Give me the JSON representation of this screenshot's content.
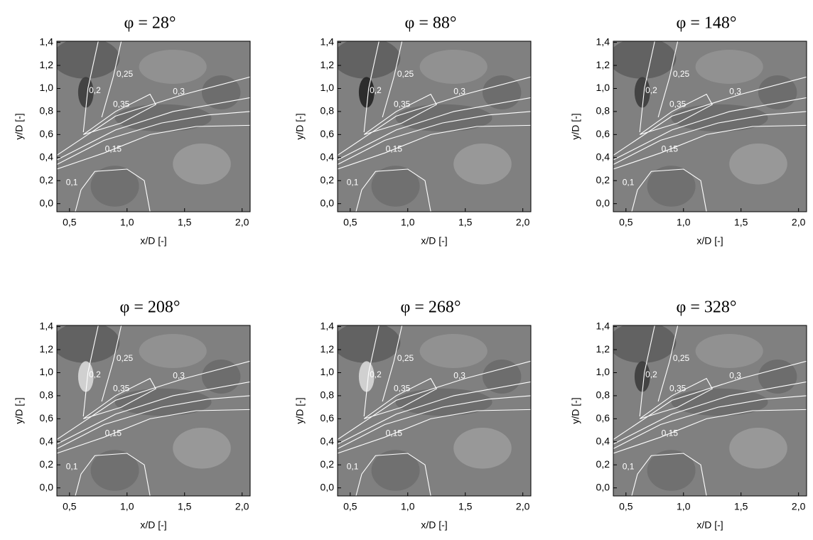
{
  "chart_data": [
    {
      "type": "contour",
      "title": "φ = 28°",
      "xlabel": "x/D [-]",
      "ylabel": "y/D [-]",
      "xlim": [
        0.39,
        2.07
      ],
      "ylim": [
        -0.07,
        1.41
      ],
      "xticks": [
        {
          "value": 0.5,
          "label": "0,5"
        },
        {
          "value": 1.0,
          "label": "1,0"
        },
        {
          "value": 1.5,
          "label": "1,5"
        },
        {
          "value": 2.0,
          "label": "2,0"
        }
      ],
      "yticks": [
        {
          "value": 0.0,
          "label": "0,0"
        },
        {
          "value": 0.2,
          "label": "0,2"
        },
        {
          "value": 0.4,
          "label": "0,4"
        },
        {
          "value": 0.6,
          "label": "0,6"
        },
        {
          "value": 0.8,
          "label": "0,8"
        },
        {
          "value": 1.0,
          "label": "1,0"
        },
        {
          "value": 1.2,
          "label": "1,2"
        },
        {
          "value": 1.4,
          "label": "1,4"
        }
      ],
      "contour_levels": [
        {
          "value": 0.1,
          "label": "0,1"
        },
        {
          "value": 0.15,
          "label": "0,15"
        },
        {
          "value": 0.2,
          "label": "0,2"
        },
        {
          "value": 0.25,
          "label": "0,25"
        },
        {
          "value": 0.3,
          "label": "0,3"
        },
        {
          "value": 0.35,
          "label": "0,35"
        }
      ]
    },
    {
      "type": "contour",
      "title": "φ = 88°",
      "xlabel": "x/D [-]",
      "ylabel": "y/D [-]",
      "xlim": [
        0.39,
        2.07
      ],
      "ylim": [
        -0.07,
        1.41
      ],
      "xticks": [
        {
          "value": 0.5,
          "label": "0,5"
        },
        {
          "value": 1.0,
          "label": "1,0"
        },
        {
          "value": 1.5,
          "label": "1,5"
        },
        {
          "value": 2.0,
          "label": "2,0"
        }
      ],
      "yticks": [
        {
          "value": 0.0,
          "label": "0,0"
        },
        {
          "value": 0.2,
          "label": "0,2"
        },
        {
          "value": 0.4,
          "label": "0,4"
        },
        {
          "value": 0.6,
          "label": "0,6"
        },
        {
          "value": 0.8,
          "label": "0,8"
        },
        {
          "value": 1.0,
          "label": "1,0"
        },
        {
          "value": 1.2,
          "label": "1,2"
        },
        {
          "value": 1.4,
          "label": "1,4"
        }
      ],
      "contour_levels": [
        {
          "value": 0.1,
          "label": "0,1"
        },
        {
          "value": 0.15,
          "label": "0,15"
        },
        {
          "value": 0.2,
          "label": "0,2"
        },
        {
          "value": 0.25,
          "label": "0,25"
        },
        {
          "value": 0.3,
          "label": "0,3"
        },
        {
          "value": 0.35,
          "label": "0,35"
        }
      ]
    },
    {
      "type": "contour",
      "title": "φ = 148°",
      "xlabel": "x/D [-]",
      "ylabel": "y/D [-]",
      "xlim": [
        0.39,
        2.07
      ],
      "ylim": [
        -0.07,
        1.41
      ],
      "xticks": [
        {
          "value": 0.5,
          "label": "0,5"
        },
        {
          "value": 1.0,
          "label": "1,0"
        },
        {
          "value": 1.5,
          "label": "1,5"
        },
        {
          "value": 2.0,
          "label": "2,0"
        }
      ],
      "yticks": [
        {
          "value": 0.0,
          "label": "0,0"
        },
        {
          "value": 0.2,
          "label": "0,2"
        },
        {
          "value": 0.4,
          "label": "0,4"
        },
        {
          "value": 0.6,
          "label": "0,6"
        },
        {
          "value": 0.8,
          "label": "0,8"
        },
        {
          "value": 1.0,
          "label": "1,0"
        },
        {
          "value": 1.2,
          "label": "1,2"
        },
        {
          "value": 1.4,
          "label": "1,4"
        }
      ],
      "contour_levels": [
        {
          "value": 0.1,
          "label": "0,1"
        },
        {
          "value": 0.15,
          "label": "0,15"
        },
        {
          "value": 0.2,
          "label": "0,2"
        },
        {
          "value": 0.25,
          "label": "0,25"
        },
        {
          "value": 0.3,
          "label": "0,3"
        },
        {
          "value": 0.35,
          "label": "0,35"
        }
      ]
    },
    {
      "type": "contour",
      "title": "φ = 208°",
      "xlabel": "x/D [-]",
      "ylabel": "y/D [-]",
      "xlim": [
        0.39,
        2.07
      ],
      "ylim": [
        -0.07,
        1.41
      ],
      "xticks": [
        {
          "value": 0.5,
          "label": "0,5"
        },
        {
          "value": 1.0,
          "label": "1,0"
        },
        {
          "value": 1.5,
          "label": "1,5"
        },
        {
          "value": 2.0,
          "label": "2,0"
        }
      ],
      "yticks": [
        {
          "value": 0.0,
          "label": "0,0"
        },
        {
          "value": 0.2,
          "label": "0,2"
        },
        {
          "value": 0.4,
          "label": "0,4"
        },
        {
          "value": 0.6,
          "label": "0,6"
        },
        {
          "value": 0.8,
          "label": "0,8"
        },
        {
          "value": 1.0,
          "label": "1,0"
        },
        {
          "value": 1.2,
          "label": "1,2"
        },
        {
          "value": 1.4,
          "label": "1,4"
        }
      ],
      "contour_levels": [
        {
          "value": 0.1,
          "label": "0,1"
        },
        {
          "value": 0.15,
          "label": "0,15"
        },
        {
          "value": 0.2,
          "label": "0,2"
        },
        {
          "value": 0.25,
          "label": "0,25"
        },
        {
          "value": 0.3,
          "label": "0,3"
        },
        {
          "value": 0.35,
          "label": "0,35"
        }
      ]
    },
    {
      "type": "contour",
      "title": "φ = 268°",
      "xlabel": "x/D [-]",
      "ylabel": "y/D [-]",
      "xlim": [
        0.39,
        2.07
      ],
      "ylim": [
        -0.07,
        1.41
      ],
      "xticks": [
        {
          "value": 0.5,
          "label": "0,5"
        },
        {
          "value": 1.0,
          "label": "1,0"
        },
        {
          "value": 1.5,
          "label": "1,5"
        },
        {
          "value": 2.0,
          "label": "2,0"
        }
      ],
      "yticks": [
        {
          "value": 0.0,
          "label": "0,0"
        },
        {
          "value": 0.2,
          "label": "0,2"
        },
        {
          "value": 0.4,
          "label": "0,4"
        },
        {
          "value": 0.6,
          "label": "0,6"
        },
        {
          "value": 0.8,
          "label": "0,8"
        },
        {
          "value": 1.0,
          "label": "1,0"
        },
        {
          "value": 1.2,
          "label": "1,2"
        },
        {
          "value": 1.4,
          "label": "1,4"
        }
      ],
      "contour_levels": [
        {
          "value": 0.1,
          "label": "0,1"
        },
        {
          "value": 0.15,
          "label": "0,15"
        },
        {
          "value": 0.2,
          "label": "0,2"
        },
        {
          "value": 0.25,
          "label": "0,25"
        },
        {
          "value": 0.3,
          "label": "0,3"
        },
        {
          "value": 0.35,
          "label": "0,35"
        }
      ]
    },
    {
      "type": "contour",
      "title": "φ = 328°",
      "xlabel": "x/D [-]",
      "ylabel": "y/D [-]",
      "xlim": [
        0.39,
        2.07
      ],
      "ylim": [
        -0.07,
        1.41
      ],
      "xticks": [
        {
          "value": 0.5,
          "label": "0,5"
        },
        {
          "value": 1.0,
          "label": "1,0"
        },
        {
          "value": 1.5,
          "label": "1,5"
        },
        {
          "value": 2.0,
          "label": "2,0"
        }
      ],
      "yticks": [
        {
          "value": 0.0,
          "label": "0,0"
        },
        {
          "value": 0.2,
          "label": "0,2"
        },
        {
          "value": 0.4,
          "label": "0,4"
        },
        {
          "value": 0.6,
          "label": "0,6"
        },
        {
          "value": 0.8,
          "label": "0,8"
        },
        {
          "value": 1.0,
          "label": "1,0"
        },
        {
          "value": 1.2,
          "label": "1,2"
        },
        {
          "value": 1.4,
          "label": "1,4"
        }
      ],
      "contour_levels": [
        {
          "value": 0.1,
          "label": "0,1"
        },
        {
          "value": 0.15,
          "label": "0,15"
        },
        {
          "value": 0.2,
          "label": "0,2"
        },
        {
          "value": 0.25,
          "label": "0,25"
        },
        {
          "value": 0.3,
          "label": "0,3"
        },
        {
          "value": 0.35,
          "label": "0,35"
        }
      ]
    }
  ]
}
